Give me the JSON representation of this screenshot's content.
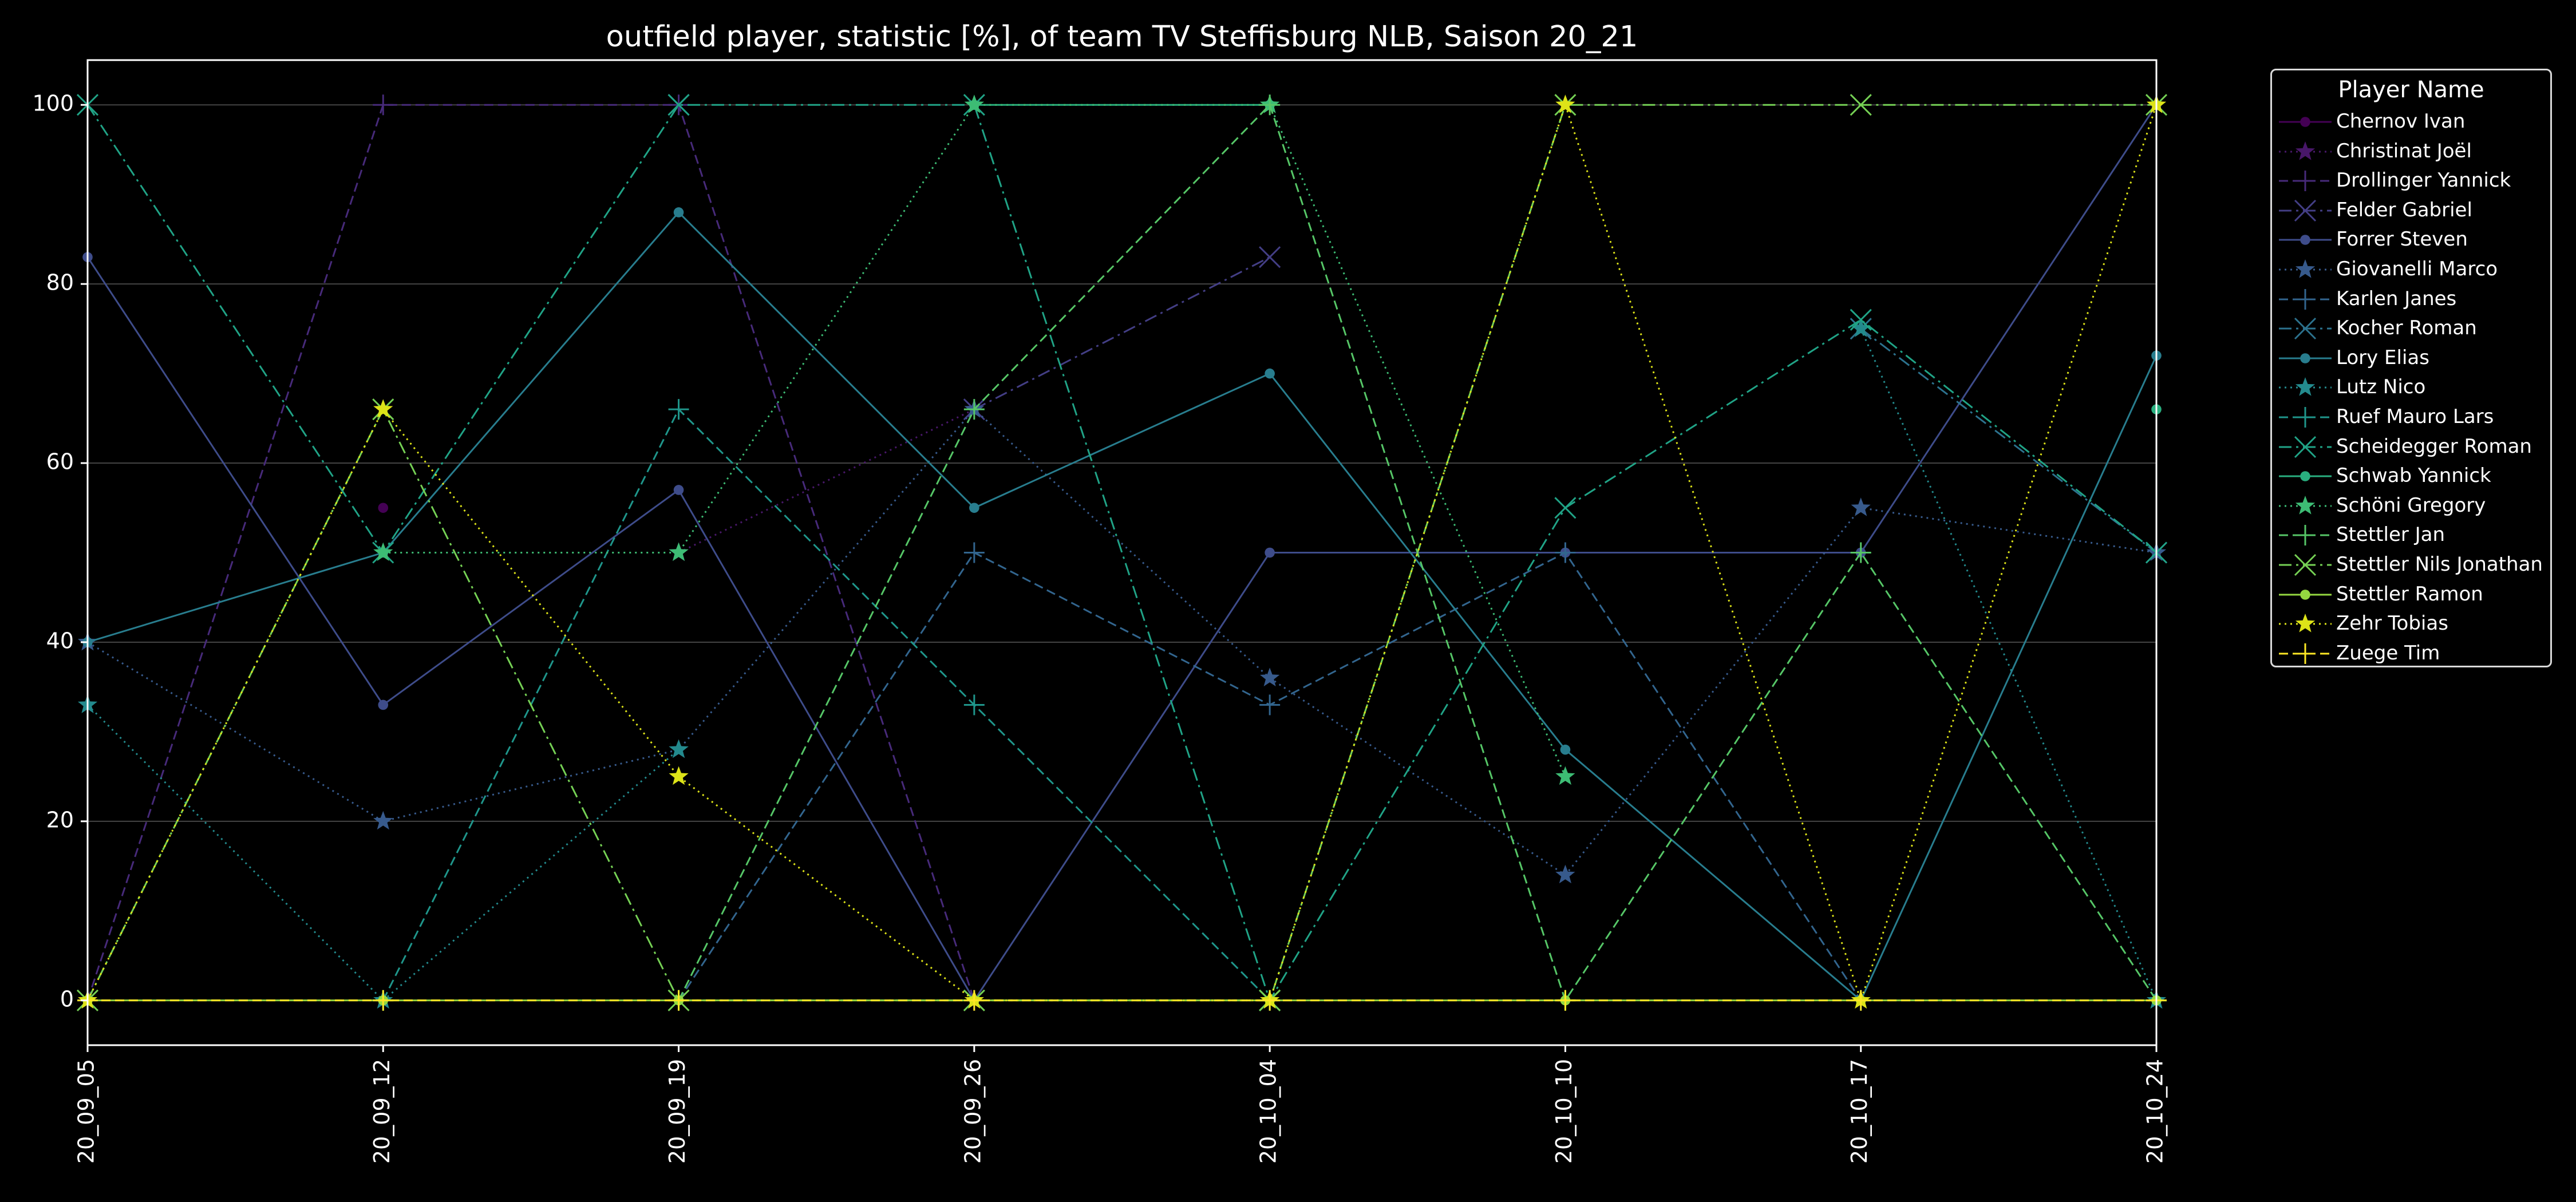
{
  "chart_data": {
    "type": "line",
    "title": "outfield player, statistic [%], of team TV Steffisburg NLB, Saison 20_21",
    "xlabel": "",
    "ylabel": "",
    "x": [
      "20_09_05",
      "20_09_12",
      "20_09_19",
      "20_09_26",
      "20_10_04",
      "20_10_10",
      "20_10_17",
      "20_10_24"
    ],
    "ylim": [
      -5,
      105
    ],
    "yticks": [
      0,
      20,
      40,
      60,
      80,
      100
    ],
    "grid": true,
    "legend_title": "Player Name",
    "legend_position": "outside-right",
    "series": [
      {
        "name": "Chernov Ivan",
        "color": "#440154",
        "linestyle": "solid",
        "marker": "circle",
        "values": [
          null,
          55,
          null,
          null,
          null,
          null,
          null,
          null
        ]
      },
      {
        "name": "Christinat Joël",
        "color": "#481769",
        "linestyle": "dotted",
        "marker": "star",
        "values": [
          null,
          null,
          50,
          66,
          null,
          null,
          null,
          null
        ]
      },
      {
        "name": "Drollinger Yannick",
        "color": "#472a7a",
        "linestyle": "dashed",
        "marker": "plus",
        "values": [
          0,
          100,
          100,
          0,
          null,
          null,
          null,
          null
        ]
      },
      {
        "name": "Felder Gabriel",
        "color": "#433e85",
        "linestyle": "dashdot",
        "marker": "x",
        "values": [
          null,
          null,
          null,
          66,
          83,
          null,
          null,
          null
        ]
      },
      {
        "name": "Forrer Steven",
        "color": "#3e4c8a",
        "linestyle": "solid",
        "marker": "circle",
        "values": [
          83,
          33,
          57,
          0,
          50,
          50,
          50,
          100
        ]
      },
      {
        "name": "Giovanelli Marco",
        "color": "#375a8c",
        "linestyle": "dotted",
        "marker": "star",
        "values": [
          40,
          20,
          28,
          66,
          36,
          14,
          55,
          50
        ]
      },
      {
        "name": "Karlen Janes",
        "color": "#32658e",
        "linestyle": "dashed",
        "marker": "plus",
        "values": [
          null,
          null,
          0,
          50,
          33,
          50,
          0,
          null
        ]
      },
      {
        "name": "Kocher Roman",
        "color": "#2c728e",
        "linestyle": "dashdot",
        "marker": "x",
        "values": [
          null,
          null,
          100,
          null,
          null,
          null,
          75,
          50
        ]
      },
      {
        "name": "Lory Elias",
        "color": "#287d8e",
        "linestyle": "solid",
        "marker": "circle",
        "values": [
          40,
          50,
          88,
          55,
          70,
          28,
          0,
          72
        ]
      },
      {
        "name": "Lutz Nico",
        "color": "#238a8d",
        "linestyle": "dotted",
        "marker": "star",
        "values": [
          33,
          0,
          28,
          null,
          null,
          null,
          75,
          0
        ]
      },
      {
        "name": "Ruef Mauro Lars",
        "color": "#1f968b",
        "linestyle": "dashed",
        "marker": "plus",
        "values": [
          null,
          0,
          66,
          33,
          0,
          null,
          null,
          null
        ]
      },
      {
        "name": "Scheidegger Roman",
        "color": "#20a386",
        "linestyle": "dashdot",
        "marker": "x",
        "values": [
          100,
          50,
          100,
          100,
          0,
          55,
          76,
          50
        ]
      },
      {
        "name": "Schwab Yannick",
        "color": "#29af7f",
        "linestyle": "solid",
        "marker": "circle",
        "values": [
          null,
          null,
          null,
          100,
          100,
          null,
          null,
          66
        ]
      },
      {
        "name": "Schöni Gregory",
        "color": "#3dbc74",
        "linestyle": "dotted",
        "marker": "star",
        "values": [
          null,
          50,
          50,
          100,
          100,
          25,
          null,
          null
        ]
      },
      {
        "name": "Stettler Jan",
        "color": "#56c667",
        "linestyle": "dashed",
        "marker": "plus",
        "values": [
          null,
          null,
          0,
          66,
          100,
          0,
          50,
          0
        ]
      },
      {
        "name": "Stettler Nils Jonathan",
        "color": "#75d054",
        "linestyle": "dashdot",
        "marker": "x",
        "values": [
          0,
          66,
          0,
          0,
          0,
          100,
          100,
          100
        ]
      },
      {
        "name": "Stettler Ramon",
        "color": "#95d840",
        "linestyle": "solid",
        "marker": "circle",
        "values": [
          0,
          0,
          0,
          0,
          0,
          0,
          0,
          0
        ]
      },
      {
        "name": "Zehr Tobias",
        "color": "#dde318",
        "linestyle": "dotted",
        "marker": "star",
        "values": [
          0,
          66,
          25,
          0,
          0,
          100,
          0,
          100
        ]
      },
      {
        "name": "Zuege Tim",
        "color": "#fde725",
        "linestyle": "dashed",
        "marker": "plus",
        "values": [
          0,
          0,
          0,
          0,
          0,
          0,
          0,
          0
        ]
      }
    ]
  }
}
